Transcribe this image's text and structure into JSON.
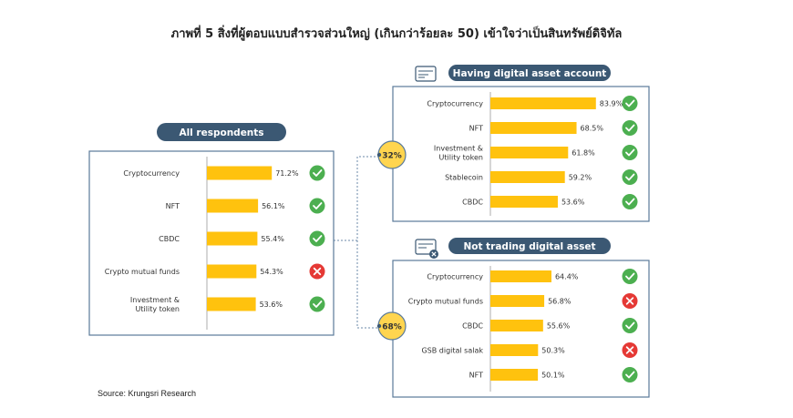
{
  "title": "ภาพที่ 5  สิ่งที่ผู้ตอบแบบสำรวจส่วนใหญ่ (เกินกว่าร้อยละ 50) เข้าใจว่าเป็นสินทรัพย์ดิจิทัล",
  "source": "Source: Krungsri Research",
  "colors": {
    "bar": "#FFC20E",
    "pill": "#3B5873",
    "border": "#5A7A9A",
    "check": "#4CAF50",
    "cross": "#E53935",
    "circle": "#FFD54F"
  },
  "chart_data": [
    {
      "type": "bar",
      "panel": "all",
      "title": "All respondents",
      "xlim": [
        0,
        100
      ],
      "categories": [
        "Cryptocurrency",
        "NFT",
        "CBDC",
        "Crypto mutual funds",
        "Investment & Utility token"
      ],
      "values": [
        71.2,
        56.1,
        55.4,
        54.3,
        53.6
      ],
      "labels": [
        "71.2%",
        "56.1%",
        "55.4%",
        "54.3%",
        "53.6%"
      ],
      "status": [
        "check",
        "check",
        "check",
        "cross",
        "check"
      ]
    },
    {
      "type": "bar",
      "panel": "having",
      "title": "Having digital asset account",
      "share": "32%",
      "xlim": [
        0,
        100
      ],
      "categories": [
        "Cryptocurrency",
        "NFT",
        "Investment & Utility token",
        "Stablecoin",
        "CBDC"
      ],
      "values": [
        83.9,
        68.5,
        61.8,
        59.2,
        53.6
      ],
      "labels": [
        "83.9%",
        "68.5%",
        "61.8%",
        "59.2%",
        "53.6%"
      ],
      "status": [
        "check",
        "check",
        "check",
        "check",
        "check"
      ]
    },
    {
      "type": "bar",
      "panel": "not",
      "title": "Not trading digital asset",
      "share": "68%",
      "xlim": [
        0,
        100
      ],
      "categories": [
        "Cryptocurrency",
        "Crypto mutual funds",
        "CBDC",
        "GSB digital salak",
        "NFT"
      ],
      "values": [
        64.4,
        56.8,
        55.6,
        50.3,
        50.1
      ],
      "labels": [
        "64.4%",
        "56.8%",
        "55.6%",
        "50.3%",
        "50.1%"
      ],
      "status": [
        "check",
        "cross",
        "check",
        "cross",
        "check"
      ]
    }
  ]
}
